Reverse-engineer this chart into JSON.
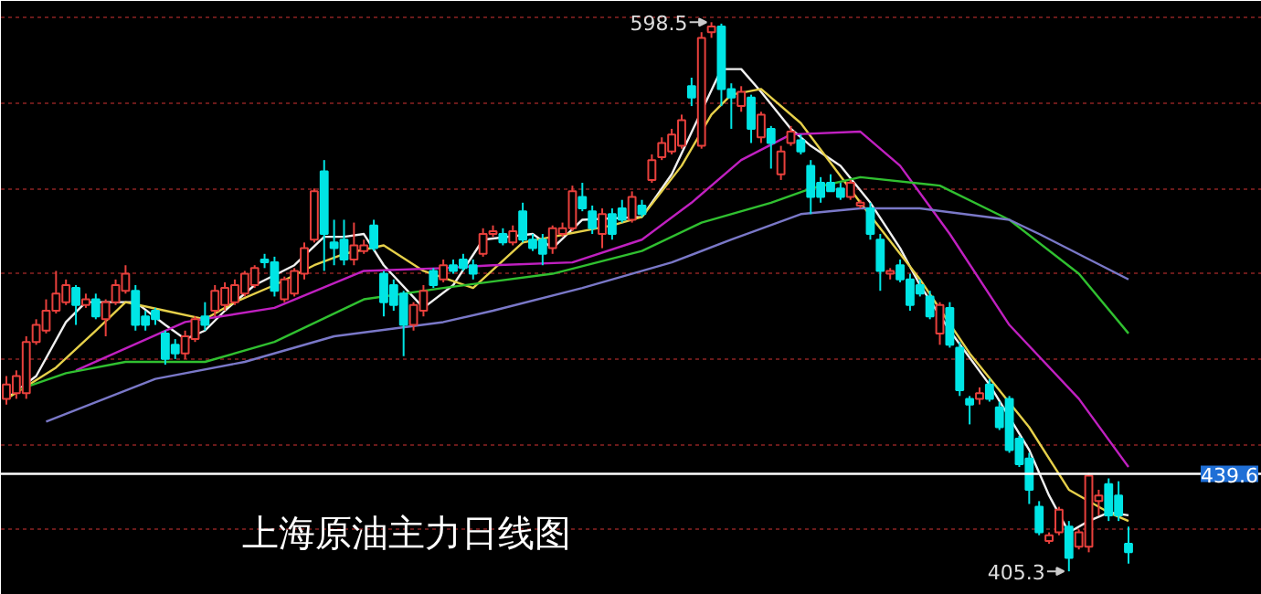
{
  "chart_data": {
    "type": "candlestick",
    "title": "上海原油主力日线图",
    "categories": [
      null,
      null,
      null,
      null,
      null,
      null,
      null,
      null,
      null,
      null,
      null,
      null,
      null,
      null,
      null,
      null,
      null,
      null,
      null,
      null,
      null,
      null,
      null,
      null,
      null,
      null,
      null,
      null,
      null,
      null,
      null,
      null,
      null,
      null,
      null,
      null,
      null,
      null,
      null,
      null,
      null,
      null,
      null,
      null,
      null,
      null,
      null,
      null,
      null,
      null,
      null,
      null,
      null,
      null,
      null,
      null,
      null,
      null,
      null,
      null,
      null,
      null,
      null,
      null,
      null,
      null,
      null,
      null,
      null,
      null,
      null,
      null,
      null,
      null,
      null,
      null,
      null,
      null,
      null,
      null,
      null,
      null,
      null,
      null,
      null,
      null,
      null,
      null,
      null,
      null,
      null,
      null,
      null,
      null,
      null,
      null,
      null,
      null,
      null,
      null,
      null,
      null,
      null,
      null,
      null,
      null,
      null,
      null,
      null,
      null,
      null,
      null,
      null,
      null
    ],
    "ohlc": [
      [
        466,
        474,
        464,
        471
      ],
      [
        468,
        476,
        466,
        474
      ],
      [
        468,
        488,
        466,
        486
      ],
      [
        486,
        494,
        485,
        492
      ],
      [
        490,
        501,
        489,
        497
      ],
      [
        497,
        511,
        496,
        503
      ],
      [
        500,
        508,
        499,
        506
      ],
      [
        505,
        506,
        492,
        499
      ],
      [
        499,
        503,
        498,
        501
      ],
      [
        501,
        503,
        494,
        495
      ],
      [
        494,
        501,
        488,
        500
      ],
      [
        500,
        508,
        499,
        506
      ],
      [
        504,
        513,
        503,
        510
      ],
      [
        504,
        506,
        490,
        492
      ],
      [
        495,
        497,
        490,
        492
      ],
      [
        497,
        498,
        492,
        494
      ],
      [
        489,
        490,
        478,
        480
      ],
      [
        485,
        487,
        480,
        482
      ],
      [
        482,
        490,
        480,
        488
      ],
      [
        487,
        495,
        486,
        494
      ],
      [
        495,
        500,
        490,
        492
      ],
      [
        497,
        506,
        495,
        504
      ],
      [
        499,
        507,
        497,
        505
      ],
      [
        500,
        508,
        499,
        506
      ],
      [
        503,
        511,
        502,
        510
      ],
      [
        506,
        513,
        505,
        512
      ],
      [
        515,
        517,
        512,
        514
      ],
      [
        514,
        516,
        502,
        504
      ],
      [
        501,
        509,
        500,
        508
      ],
      [
        503,
        512,
        502,
        511
      ],
      [
        510,
        521,
        508,
        519
      ],
      [
        522,
        540,
        521,
        539
      ],
      [
        546,
        550,
        511,
        524
      ],
      [
        521,
        529,
        513,
        519
      ],
      [
        522,
        529,
        513,
        515
      ],
      [
        515,
        528,
        513,
        520
      ],
      [
        518,
        522,
        517,
        520
      ],
      [
        527,
        529,
        518,
        519
      ],
      [
        510,
        511,
        495,
        500
      ],
      [
        506,
        508,
        497,
        499
      ],
      [
        503,
        504,
        481,
        492
      ],
      [
        492,
        500,
        490,
        499
      ],
      [
        497,
        506,
        495,
        504
      ],
      [
        511,
        512,
        505,
        506
      ],
      [
        508,
        515,
        507,
        513
      ],
      [
        513,
        515,
        510,
        511
      ],
      [
        515,
        517,
        511,
        512
      ],
      [
        513,
        515,
        508,
        510
      ],
      [
        517,
        526,
        516,
        524
      ],
      [
        524,
        527,
        523,
        525
      ],
      [
        524,
        526,
        520,
        521
      ],
      [
        521,
        527,
        520,
        525
      ],
      [
        532,
        535,
        521,
        522
      ],
      [
        522,
        524,
        518,
        519
      ],
      [
        522,
        524,
        513,
        517
      ],
      [
        519,
        527,
        517,
        526
      ],
      [
        524,
        528,
        523,
        526
      ],
      [
        526,
        541,
        525,
        539
      ],
      [
        537,
        542,
        532,
        533
      ],
      [
        532,
        534,
        524,
        526
      ],
      [
        524,
        533,
        519,
        531
      ],
      [
        531,
        533,
        522,
        524
      ],
      [
        533,
        536,
        528,
        529
      ],
      [
        529,
        539,
        528,
        537
      ],
      [
        534,
        536,
        530,
        531
      ],
      [
        543,
        552,
        542,
        550
      ],
      [
        551,
        558,
        550,
        556
      ],
      [
        553,
        561,
        552,
        559
      ],
      [
        555,
        566,
        554,
        564
      ],
      [
        576,
        579,
        569,
        572
      ],
      [
        555,
        595,
        554,
        593
      ],
      [
        595,
        598.5,
        593,
        597
      ],
      [
        597,
        598,
        569,
        575
      ],
      [
        575,
        577,
        561,
        572
      ],
      [
        569,
        576,
        567,
        574
      ],
      [
        572,
        573,
        556,
        561
      ],
      [
        558,
        567,
        556,
        566
      ],
      [
        561,
        562,
        547,
        556
      ],
      [
        545,
        555,
        543,
        553
      ],
      [
        556,
        562,
        555,
        560
      ],
      [
        557,
        559,
        552,
        553
      ],
      [
        548,
        550,
        531,
        537
      ],
      [
        542,
        544,
        535,
        537
      ],
      [
        542,
        545,
        539,
        539
      ],
      [
        540,
        542,
        536,
        537
      ],
      [
        537,
        543,
        536,
        542
      ],
      [
        534,
        536,
        533,
        535
      ],
      [
        533,
        535,
        522,
        524
      ],
      [
        522,
        524,
        504,
        511
      ],
      [
        510,
        512,
        508,
        511
      ],
      [
        513,
        515,
        507,
        508
      ],
      [
        508,
        510,
        497,
        499
      ],
      [
        506,
        508,
        502,
        503
      ],
      [
        502,
        504,
        494,
        495
      ],
      [
        489,
        500,
        485,
        499
      ],
      [
        498,
        500,
        484,
        485
      ],
      [
        484,
        486,
        467,
        469
      ],
      [
        466,
        467,
        457,
        464
      ],
      [
        466,
        470,
        464,
        468
      ],
      [
        471,
        473,
        465,
        466
      ],
      [
        463,
        465,
        455,
        456
      ],
      [
        466,
        467,
        447,
        448
      ],
      [
        452,
        453,
        442,
        443
      ],
      [
        445,
        447,
        429,
        434
      ],
      [
        428,
        430,
        418,
        419
      ],
      [
        416,
        419,
        415,
        418
      ],
      [
        419,
        428,
        418,
        427
      ],
      [
        421,
        423,
        405.3,
        410
      ],
      [
        414,
        420,
        413,
        419
      ],
      [
        414,
        440,
        412,
        439
      ],
      [
        430,
        434,
        425,
        432
      ],
      [
        436,
        438,
        423,
        425
      ],
      [
        432,
        437,
        423,
        425
      ],
      [
        415,
        421,
        408,
        412
      ]
    ],
    "colors": [
      "#e8403c",
      "#e8403c",
      "#e8403c",
      "#e8403c",
      "#e8403c",
      "#e8403c",
      "#e8403c",
      "#00e5e5",
      "#e8403c",
      "#00e5e5",
      "#e8403c",
      "#e8403c",
      "#e8403c",
      "#00e5e5",
      "#00e5e5",
      "#00e5e5",
      "#00e5e5",
      "#00e5e5",
      "#e8403c",
      "#e8403c",
      "#00e5e5",
      "#e8403c",
      "#e8403c",
      "#e8403c",
      "#e8403c",
      "#e8403c",
      "#00e5e5",
      "#00e5e5",
      "#e8403c",
      "#e8403c",
      "#e8403c",
      "#e8403c",
      "#00e5e5",
      "#00e5e5",
      "#00e5e5",
      "#e8403c",
      "#e8403c",
      "#00e5e5",
      "#00e5e5",
      "#00e5e5",
      "#00e5e5",
      "#e8403c",
      "#e8403c",
      "#00e5e5",
      "#e8403c",
      "#00e5e5",
      "#00e5e5",
      "#00e5e5",
      "#e8403c",
      "#e8403c",
      "#00e5e5",
      "#e8403c",
      "#00e5e5",
      "#00e5e5",
      "#00e5e5",
      "#e8403c",
      "#e8403c",
      "#e8403c",
      "#00e5e5",
      "#00e5e5",
      "#e8403c",
      "#00e5e5",
      "#00e5e5",
      "#e8403c",
      "#00e5e5",
      "#e8403c",
      "#e8403c",
      "#e8403c",
      "#e8403c",
      "#00e5e5",
      "#e8403c",
      "#e8403c",
      "#00e5e5",
      "#00e5e5",
      "#e8403c",
      "#00e5e5",
      "#e8403c",
      "#00e5e5",
      "#e8403c",
      "#e8403c",
      "#00e5e5",
      "#00e5e5",
      "#00e5e5",
      "#00e5e5",
      "#00e5e5",
      "#e8403c",
      "#e8403c",
      "#00e5e5",
      "#00e5e5",
      "#e8403c",
      "#00e5e5",
      "#00e5e5",
      "#00e5e5",
      "#00e5e5",
      "#e8403c",
      "#00e5e5",
      "#00e5e5",
      "#00e5e5",
      "#e8403c",
      "#00e5e5",
      "#00e5e5",
      "#00e5e5",
      "#00e5e5",
      "#00e5e5",
      "#00e5e5",
      "#e8403c",
      "#e8403c",
      "#00e5e5",
      "#e8403c",
      "#e8403c",
      "#e8403c",
      "#00e5e5",
      "#00e5e5",
      "#00e5e5"
    ],
    "series": [
      {
        "type": "line",
        "color": "#f0f0f0",
        "values": [
          466,
          null,
          null,
          474,
          null,
          null,
          493,
          null,
          500,
          null,
          500,
          null,
          null,
          500,
          null,
          null,
          492,
          null,
          487,
          null,
          490,
          null,
          497,
          null,
          null,
          506,
          null,
          null,
          null,
          513,
          null,
          null,
          523,
          null,
          523,
          null,
          524,
          null,
          513,
          null,
          null,
          null,
          498,
          null,
          null,
          506,
          null,
          null,
          522,
          null,
          null,
          null,
          null,
          524,
          null,
          519,
          null,
          null,
          529,
          null,
          null,
          null,
          null,
          null,
          530,
          null,
          null,
          545,
          null,
          null,
          null,
          null,
          582,
          null,
          582,
          null,
          574,
          null,
          null,
          561,
          null,
          555,
          null,
          null,
          548,
          null,
          null,
          535,
          null,
          null,
          519,
          null,
          506,
          null,
          null,
          490,
          null,
          null,
          null,
          471,
          null,
          null,
          null,
          448,
          null,
          432,
          null,
          419,
          null,
          423,
          null,
          426,
          null,
          425
        ]
      },
      {
        "type": "line",
        "color": "#e6d04a",
        "values": [
          466,
          null,
          null,
          null,
          null,
          477,
          null,
          null,
          null,
          490,
          null,
          null,
          500,
          null,
          null,
          null,
          497,
          null,
          null,
          null,
          494,
          null,
          null,
          500,
          null,
          null,
          null,
          506,
          null,
          null,
          null,
          513,
          null,
          null,
          517,
          null,
          null,
          null,
          520,
          null,
          null,
          null,
          511,
          null,
          null,
          null,
          null,
          505,
          null,
          null,
          null,
          null,
          521,
          null,
          null,
          null,
          null,
          null,
          null,
          null,
          null,
          527,
          null,
          null,
          530,
          null,
          null,
          null,
          548,
          null,
          null,
          566,
          null,
          573,
          null,
          null,
          575,
          null,
          null,
          null,
          563,
          null,
          null,
          null,
          null,
          null,
          535,
          null,
          null,
          null,
          null,
          null,
          508,
          null,
          null,
          null,
          null,
          482,
          null,
          null,
          null,
          null,
          null,
          456,
          null,
          null,
          null,
          434,
          null,
          null,
          null,
          426,
          null,
          423
        ]
      },
      {
        "type": "line",
        "color": "#c020c0",
        "values": [
          null,
          null,
          null,
          null,
          null,
          null,
          null,
          476,
          null,
          null,
          null,
          null,
          null,
          null,
          null,
          null,
          null,
          null,
          493,
          null,
          null,
          null,
          null,
          null,
          null,
          null,
          null,
          498,
          null,
          null,
          null,
          null,
          null,
          null,
          null,
          null,
          511,
          null,
          null,
          null,
          null,
          null,
          null,
          null,
          512,
          null,
          null,
          null,
          null,
          513,
          null,
          null,
          null,
          null,
          null,
          null,
          null,
          514,
          null,
          null,
          null,
          null,
          null,
          null,
          522,
          null,
          null,
          null,
          null,
          535,
          null,
          null,
          null,
          null,
          550,
          null,
          null,
          null,
          null,
          559,
          null,
          null,
          null,
          null,
          null,
          null,
          560,
          null,
          null,
          null,
          548,
          null,
          null,
          null,
          null,
          524,
          null,
          null,
          null,
          null,
          null,
          492,
          null,
          null,
          null,
          null,
          null,
          null,
          466,
          null,
          null,
          null,
          null,
          442
        ]
      },
      {
        "type": "line",
        "color": "#30c030",
        "values": [
          null,
          469,
          null,
          null,
          null,
          null,
          475,
          null,
          null,
          null,
          null,
          null,
          479,
          null,
          null,
          null,
          null,
          null,
          null,
          null,
          479,
          null,
          null,
          null,
          null,
          null,
          null,
          486,
          null,
          null,
          null,
          null,
          null,
          null,
          null,
          null,
          501,
          null,
          null,
          null,
          null,
          null,
          null,
          null,
          505,
          null,
          null,
          null,
          null,
          null,
          null,
          null,
          null,
          null,
          null,
          510,
          null,
          null,
          null,
          null,
          null,
          null,
          null,
          null,
          518,
          null,
          null,
          null,
          null,
          null,
          528,
          null,
          null,
          null,
          null,
          null,
          null,
          535,
          null,
          null,
          null,
          540,
          null,
          null,
          null,
          null,
          544,
          null,
          null,
          null,
          null,
          null,
          null,
          null,
          541,
          null,
          null,
          null,
          null,
          null,
          null,
          529,
          null,
          null,
          null,
          null,
          null,
          null,
          510,
          null,
          null,
          null,
          null,
          489
        ]
      },
      {
        "type": "line",
        "color": "#7a78c8",
        "values": [
          null,
          null,
          null,
          null,
          458,
          null,
          null,
          null,
          null,
          null,
          null,
          null,
          null,
          null,
          null,
          473,
          null,
          null,
          null,
          null,
          null,
          null,
          null,
          null,
          479,
          null,
          null,
          null,
          null,
          null,
          null,
          null,
          null,
          488,
          null,
          null,
          null,
          null,
          null,
          null,
          null,
          null,
          null,
          null,
          493,
          null,
          null,
          null,
          null,
          497,
          null,
          null,
          null,
          null,
          null,
          null,
          null,
          null,
          505,
          null,
          null,
          null,
          null,
          null,
          null,
          null,
          null,
          514,
          null,
          null,
          null,
          null,
          null,
          522,
          null,
          null,
          null,
          null,
          null,
          null,
          531,
          null,
          null,
          null,
          null,
          null,
          533,
          null,
          null,
          null,
          null,
          null,
          533,
          null,
          null,
          null,
          null,
          null,
          null,
          null,
          null,
          529,
          null,
          null,
          524,
          null,
          null,
          null,
          null,
          null,
          null,
          null,
          null,
          508
        ]
      }
    ],
    "ylim": [
      397,
      606
    ],
    "yticks": [
      {
        "value": 420,
        "label": null
      },
      {
        "value": 450,
        "label": null
      },
      {
        "value": 480,
        "label": null
      },
      {
        "value": 510,
        "label": null
      },
      {
        "value": 540,
        "label": null
      },
      {
        "value": 570,
        "label": null
      },
      {
        "value": 600,
        "label": null
      }
    ],
    "grid": "y",
    "tick_labels": false,
    "ref_lines": [
      {
        "axis": "y",
        "value": 439.6,
        "label": "439.6",
        "color": "#ffffff"
      }
    ],
    "annotations": [
      "598.5",
      "405.3"
    ]
  }
}
